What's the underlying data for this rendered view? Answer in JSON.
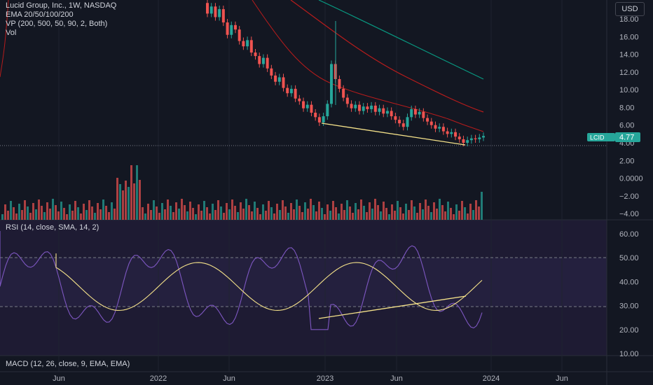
{
  "header": {
    "symbol_title": "Lucid Group, Inc., 1W, NASDAQ",
    "indicator_ema": "EMA 20/50/100/200",
    "indicator_vp": "VP (200, 500, 50, 90, 2, Both)",
    "indicator_vol": "Vol",
    "currency_button": "USD"
  },
  "rsi_label": "RSI (14, close, SMA, 14, 2)",
  "macd_label": "MACD (12, 26, close, 9, EMA, EMA)",
  "colors": {
    "background": "#131722",
    "up": "#26a69a",
    "down": "#ef5350",
    "ema_red": "#b71c1c",
    "ema_teal": "#089981",
    "rsi_line": "#7e57c2",
    "rsi_ma": "#f5e28a",
    "trendline": "#f5e28a",
    "price_badge": "#26a69a"
  },
  "chart_data": {
    "type": "candlestick",
    "price_axis": {
      "ticks": [
        "18.00",
        "16.00",
        "14.00",
        "12.00",
        "10.00",
        "8.00",
        "6.00",
        "4.00",
        "2.00",
        "0.0000",
        "−2.00",
        "−4.00"
      ],
      "values": [
        18,
        16,
        14,
        12,
        10,
        8,
        6,
        4,
        2,
        0,
        -2,
        -4
      ]
    },
    "last_price": {
      "symbol": "LCID",
      "value": "4.77"
    },
    "rsi_axis": {
      "ticks": [
        "60.00",
        "50.00",
        "40.00",
        "30.00",
        "20.00",
        "10.00"
      ],
      "values": [
        60,
        50,
        40,
        30,
        20,
        10
      ],
      "bands": [
        30,
        50
      ]
    },
    "time_axis": [
      "Jun",
      "2022",
      "Jun",
      "2023",
      "Jun",
      "2024",
      "Jun"
    ],
    "candle_series": [
      [
        19.8,
        18.6
      ],
      [
        18.6,
        19.4
      ],
      [
        19.4,
        18.2
      ],
      [
        18.2,
        19.1
      ],
      [
        19.1,
        17.6
      ],
      [
        17.6,
        16.2
      ],
      [
        16.2,
        17.3
      ],
      [
        17.3,
        16.8
      ],
      [
        16.8,
        15.5
      ],
      [
        15.5,
        14.9
      ],
      [
        14.9,
        15.6
      ],
      [
        15.6,
        14.2
      ],
      [
        14.2,
        13.8
      ],
      [
        13.8,
        12.9
      ],
      [
        12.9,
        13.6
      ],
      [
        13.6,
        12.4
      ],
      [
        12.4,
        11.6
      ],
      [
        11.6,
        10.9
      ],
      [
        10.9,
        11.4
      ],
      [
        11.4,
        10.2
      ],
      [
        10.2,
        9.6
      ],
      [
        9.6,
        10.1
      ],
      [
        10.1,
        9.0
      ],
      [
        9.0,
        8.7
      ],
      [
        8.7,
        7.9
      ],
      [
        7.9,
        8.3
      ],
      [
        8.3,
        7.4
      ],
      [
        7.4,
        6.9
      ],
      [
        6.9,
        6.3
      ],
      [
        6.3,
        7.0
      ],
      [
        7.0,
        8.4
      ],
      [
        8.4,
        12.9
      ],
      [
        12.9,
        11.2
      ],
      [
        11.2,
        10.1
      ],
      [
        10.1,
        9.1
      ],
      [
        9.1,
        8.4
      ],
      [
        8.4,
        7.9
      ],
      [
        7.9,
        8.3
      ],
      [
        8.3,
        7.6
      ],
      [
        7.6,
        8.1
      ],
      [
        8.1,
        7.8
      ],
      [
        7.8,
        8.2
      ],
      [
        8.2,
        7.5
      ],
      [
        7.5,
        7.9
      ],
      [
        7.9,
        7.3
      ],
      [
        7.3,
        7.6
      ],
      [
        7.6,
        7.0
      ],
      [
        7.0,
        6.6
      ],
      [
        6.6,
        6.2
      ],
      [
        6.2,
        5.8
      ],
      [
        5.8,
        6.9
      ],
      [
        6.9,
        7.8
      ],
      [
        7.8,
        7.2
      ],
      [
        7.2,
        7.5
      ],
      [
        7.5,
        6.8
      ],
      [
        6.8,
        6.4
      ],
      [
        6.4,
        6.0
      ],
      [
        6.0,
        5.6
      ],
      [
        5.6,
        5.8
      ],
      [
        5.8,
        5.3
      ],
      [
        5.3,
        5.0
      ],
      [
        5.0,
        5.2
      ],
      [
        5.2,
        4.7
      ],
      [
        4.7,
        4.4
      ],
      [
        4.4,
        4.0
      ],
      [
        4.0,
        4.3
      ],
      [
        4.3,
        4.5
      ],
      [
        4.5,
        4.4
      ],
      [
        4.4,
        4.6
      ],
      [
        4.6,
        4.77
      ]
    ],
    "trendline_price": [
      [
        6.1
      ],
      [
        3.9
      ]
    ],
    "trendline_rsi": [
      [
        25
      ],
      [
        34
      ]
    ]
  }
}
